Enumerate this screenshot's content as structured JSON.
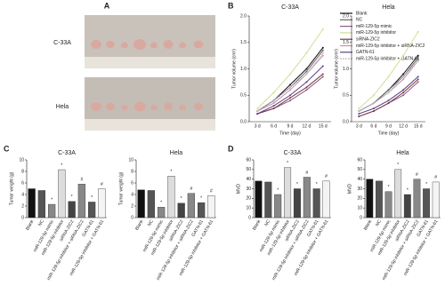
{
  "panel_labels": [
    "A",
    "B",
    "C",
    "D"
  ],
  "photo_labels": [
    "C-33A",
    "Hela"
  ],
  "chart_data": [
    {
      "type": "line",
      "title": "C-33A",
      "ylabel": "Tumor volume (cm³)",
      "xlabel": "Time (day)",
      "categories": [
        "3 d",
        "6 d",
        "9 d",
        "12 d",
        "15 d"
      ],
      "ylim": [
        0,
        2
      ],
      "yticks": [
        {
          "value": 0,
          "label": "0.0"
        },
        0.5,
        {
          "value": 1,
          "label": "1.0"
        },
        1.5,
        {
          "value": 2,
          "label": "2.0"
        }
      ],
      "legend": true,
      "series": [
        {
          "name": "Blank",
          "color": "#111111",
          "values": [
            0.2,
            0.4,
            0.7,
            1.0,
            1.4
          ]
        },
        {
          "name": "NC",
          "color": "#666666",
          "values": [
            0.2,
            0.4,
            0.65,
            0.95,
            1.35
          ]
        },
        {
          "name": "miR-129-5p mimic",
          "color": "#8a5c8a",
          "values": [
            0.15,
            0.25,
            0.4,
            0.6,
            0.85
          ]
        },
        {
          "name": "miR-129-5p inhibitor",
          "color": "#d2de96",
          "values": [
            0.25,
            0.55,
            0.9,
            1.3,
            1.75
          ]
        },
        {
          "name": "siRNA-ZIC2",
          "color": "#7a3a3a",
          "values": [
            0.15,
            0.25,
            0.45,
            0.65,
            0.9
          ]
        },
        {
          "name": "miR-129-5p inhibitor + siRNA-ZIC2",
          "color": "#c890b8",
          "values": [
            0.2,
            0.35,
            0.6,
            0.9,
            1.25
          ]
        },
        {
          "name": "GATN-61",
          "color": "#5e3f86",
          "values": [
            0.15,
            0.3,
            0.5,
            0.75,
            1.05
          ]
        },
        {
          "name": "miR-129-5p inhibitor + GATN-61",
          "color": "#bbbbbb",
          "dashed": true,
          "values": [
            0.2,
            0.4,
            0.65,
            0.9,
            1.3
          ]
        }
      ]
    },
    {
      "type": "line",
      "title": "Hela",
      "ylabel": "Tumor volume (cm³)",
      "xlabel": "Time (day)",
      "categories": [
        "3 d",
        "6 d",
        "9 d",
        "12 d",
        "15 d"
      ],
      "ylim": [
        0,
        2
      ],
      "yticks": [
        {
          "value": 0,
          "label": "0.0"
        },
        0.5,
        {
          "value": 1,
          "label": "1.0"
        },
        1.5,
        {
          "value": 2,
          "label": "2.0"
        }
      ],
      "legend": false,
      "series": [
        {
          "color": "#111111",
          "values": [
            0.2,
            0.35,
            0.6,
            0.9,
            1.25
          ]
        },
        {
          "color": "#666666",
          "values": [
            0.2,
            0.35,
            0.6,
            0.85,
            1.2
          ]
        },
        {
          "color": "#8a5c8a",
          "values": [
            0.1,
            0.2,
            0.35,
            0.5,
            0.75
          ]
        },
        {
          "color": "#d2de96",
          "values": [
            0.25,
            0.5,
            0.85,
            1.25,
            1.7
          ]
        },
        {
          "color": "#7a3a3a",
          "values": [
            0.1,
            0.2,
            0.35,
            0.55,
            0.8
          ]
        },
        {
          "color": "#c890b8",
          "values": [
            0.2,
            0.35,
            0.55,
            0.8,
            1.15
          ]
        },
        {
          "color": "#5e3f86",
          "values": [
            0.15,
            0.25,
            0.4,
            0.6,
            0.85
          ]
        },
        {
          "color": "#bbbbbb",
          "dashed": true,
          "values": [
            0.2,
            0.35,
            0.55,
            0.85,
            1.15
          ]
        }
      ]
    },
    {
      "type": "bar",
      "title": "C-33A",
      "ylabel": "Tumor weight (g)",
      "ylim": [
        0,
        10
      ],
      "yticks": [
        0,
        2,
        4,
        6,
        8,
        10
      ],
      "categories": [
        "Blank",
        "NC",
        "miR-129-5p mimic",
        "miR-129-5p inhibitor",
        "siRNA-ZIC2",
        "miR-129-5p inhibitor + siRNA-ZIC2",
        "GATN-61",
        "miR-129-5p inhibitor + GATN-61"
      ],
      "colors": [
        "#111111",
        "#555555",
        "#888888",
        "#dddddd",
        "#444444",
        "#888888",
        "#555555",
        "#f4f4f4"
      ],
      "values": [
        5,
        4.7,
        2.3,
        8.3,
        2.8,
        5.8,
        2.7,
        5
      ],
      "significance": [
        null,
        null,
        "*",
        "*",
        "*",
        "#",
        "*",
        "#"
      ]
    },
    {
      "type": "bar",
      "title": "Hela",
      "ylabel": "Tumor weight (g)",
      "ylim": [
        0,
        10
      ],
      "yticks": [
        0,
        2,
        4,
        6,
        8,
        10
      ],
      "categories": [
        "Blank",
        "NC",
        "miR-129-5p mimic",
        "miR-129-5p inhibitor",
        "siRNA-ZIC2",
        "miR-129-5p inhibitor + siRNA-ZIC2",
        "GATN-61",
        "miR-129-5p inhibitor + GATN-61"
      ],
      "colors": [
        "#111111",
        "#555555",
        "#888888",
        "#dddddd",
        "#444444",
        "#888888",
        "#555555",
        "#f4f4f4"
      ],
      "values": [
        4.8,
        4.7,
        1.8,
        7.2,
        2.5,
        4.2,
        2.6,
        3.8
      ],
      "significance": [
        null,
        null,
        "*",
        "*",
        "*",
        "#",
        "*",
        "#"
      ]
    },
    {
      "type": "bar",
      "title": "C-33A",
      "ylabel": "MVD",
      "ylim": [
        0,
        60
      ],
      "yticks": [
        0,
        10,
        20,
        30,
        40,
        50,
        60
      ],
      "categories": [
        "Blank",
        "NC",
        "miR-129-5p mimic",
        "miR-129-5p inhibitor",
        "siRNA-ZIC2",
        "miR-129-5p inhibitor + siRNA-ZIC2",
        "GATN-61",
        "miR-129-5p inhibitor + GATN-61"
      ],
      "colors": [
        "#111111",
        "#555555",
        "#888888",
        "#dddddd",
        "#444444",
        "#888888",
        "#555555",
        "#f4f4f4"
      ],
      "values": [
        38,
        37,
        24,
        52,
        30,
        42,
        30,
        38
      ],
      "significance": [
        null,
        null,
        "*",
        "*",
        "*",
        "#",
        "*",
        "#"
      ]
    },
    {
      "type": "bar",
      "title": "Hela",
      "ylabel": "MVD",
      "ylim": [
        0,
        60
      ],
      "yticks": [
        0,
        10,
        20,
        30,
        40,
        50,
        60
      ],
      "categories": [
        "Blank",
        "NC",
        "miR-129-5p mimic",
        "miR-129-5p inhibitor",
        "siRNA-ZIC2",
        "miR-129-5p inhibitor + siRNA-ZIC2",
        "GATN-61",
        "miR-129-5p inhibitor + GATN-61"
      ],
      "colors": [
        "#111111",
        "#555555",
        "#888888",
        "#dddddd",
        "#444444",
        "#888888",
        "#555555",
        "#f4f4f4"
      ],
      "values": [
        40,
        38,
        27,
        50,
        24,
        40,
        30,
        37
      ],
      "significance": [
        null,
        null,
        "*",
        "*",
        "*",
        "#",
        "*",
        "#"
      ]
    }
  ]
}
